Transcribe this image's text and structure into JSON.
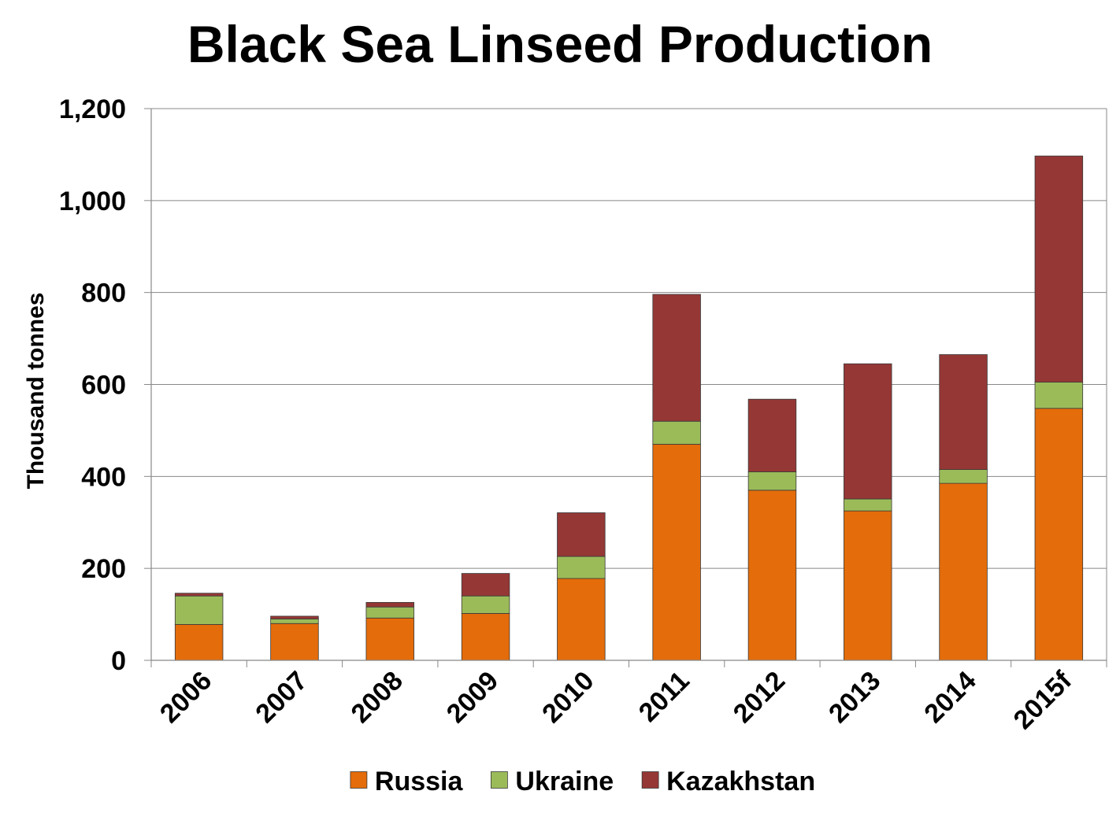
{
  "chart_data": {
    "type": "bar",
    "stacked": true,
    "title": "Black Sea Linseed Production",
    "xlabel": "",
    "ylabel": "Thousand tonnes",
    "ylim": [
      0,
      1200
    ],
    "yticks": [
      "0",
      "200",
      "400",
      "600",
      "800",
      "1,000",
      "1,200"
    ],
    "ytick_values": [
      0,
      200,
      400,
      600,
      800,
      1000,
      1200
    ],
    "categories": [
      "2006",
      "2007",
      "2008",
      "2009",
      "2010",
      "2011",
      "2012",
      "2013",
      "2014",
      "2015f"
    ],
    "series": [
      {
        "name": "Russia",
        "color": "#e46c0a",
        "values": [
          78,
          80,
          92,
          102,
          178,
          470,
          370,
          325,
          385,
          548
        ]
      },
      {
        "name": "Ukraine",
        "color": "#9bbb59",
        "values": [
          62,
          10,
          24,
          38,
          48,
          50,
          40,
          26,
          30,
          57
        ]
      },
      {
        "name": "Kazakhstan",
        "color": "#953735",
        "values": [
          6,
          6,
          10,
          49,
          95,
          276,
          158,
          294,
          250,
          492
        ]
      }
    ],
    "grid": true,
    "legend": "bottom"
  }
}
